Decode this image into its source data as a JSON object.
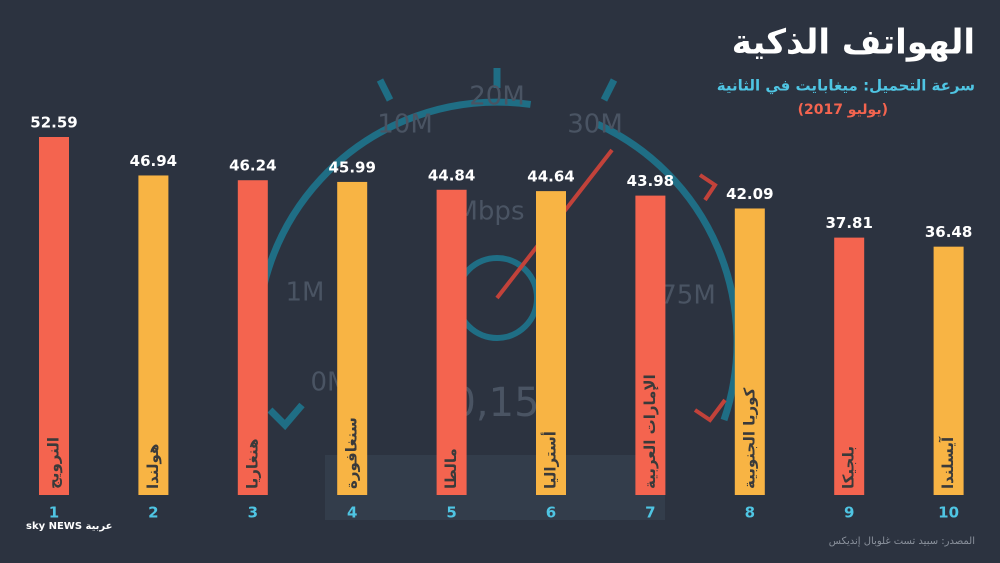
{
  "chart_data": {
    "type": "bar",
    "title": "الهواتف الذكية",
    "subtitle": "سرعة التحميل: ميغابايت في الثانية",
    "date": "(يوليو 2017)",
    "source": "المصدر: سبيد تست غلوبال إنديكس",
    "logo": "sky NEWS عربية",
    "categories": [
      "النرويج",
      "هولندا",
      "هنغاريا",
      "سنغافورة",
      "مالطا",
      "أستراليا",
      "الإمارات العربية",
      "كوريا الجنوبية",
      "بلجيكا",
      "آيسلندا"
    ],
    "ranks": [
      1,
      2,
      3,
      4,
      5,
      6,
      7,
      8,
      9,
      10
    ],
    "values": [
      52.59,
      46.94,
      46.24,
      45.99,
      44.84,
      44.64,
      43.98,
      42.09,
      37.81,
      36.48
    ],
    "colors": [
      "#f4644f",
      "#f8b444"
    ],
    "gauge_labels": [
      "0M",
      "1M",
      "10M",
      "20M",
      "30M",
      "75M",
      "Mbps",
      "0,15"
    ]
  }
}
